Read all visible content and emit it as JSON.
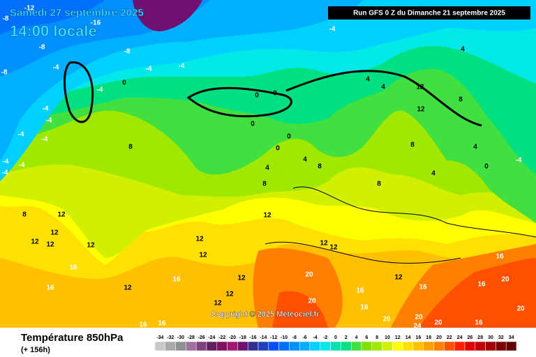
{
  "header": {
    "date": "Samedi 27 septembre 2025",
    "time": "14:00 locale",
    "run": "Run GFS 0 Z du Dimanche 21 septembre 2025"
  },
  "copyright": "Copyright © 2025 Meteociel.fr",
  "footer": {
    "variable": "Température 850hPa",
    "lead": "(+ 156h)"
  },
  "legend": {
    "values": [
      -34,
      -32,
      -30,
      -28,
      -26,
      -24,
      -22,
      -20,
      -18,
      -16,
      -14,
      -12,
      -10,
      -8,
      -6,
      -4,
      -2,
      0,
      2,
      4,
      6,
      8,
      10,
      12,
      14,
      16,
      18,
      20,
      22,
      24,
      26,
      28,
      30,
      32,
      34
    ],
    "colors": [
      "#c8c8c8",
      "#a8a8a8",
      "#909090",
      "#a070a0",
      "#804080",
      "#602060",
      "#801060",
      "#a01870",
      "#701070",
      "#303090",
      "#2040c0",
      "#0050ff",
      "#0070ff",
      "#0090ff",
      "#00b0ff",
      "#00d0ff",
      "#00e8e8",
      "#00e0b0",
      "#00e080",
      "#40e040",
      "#80e000",
      "#a0e800",
      "#d0f000",
      "#ffff00",
      "#ffe000",
      "#ffc000",
      "#ffa000",
      "#ff8000",
      "#ff5000",
      "#ff2000",
      "#e00000",
      "#c00000",
      "#a00000",
      "#800000",
      "#600000"
    ]
  },
  "map_labels": [
    "-12",
    "-16",
    "-8",
    "-8",
    "-8",
    "-4",
    "-4",
    "-4",
    "-4",
    "0",
    "-8",
    "-4",
    "-4",
    "-4",
    "-4",
    "-4",
    "-4",
    "-4",
    "-4",
    "4",
    "4",
    "4",
    "0",
    "0",
    "0",
    "8",
    "0",
    "0",
    "4",
    "4",
    "8",
    "8",
    "8",
    "12",
    "8",
    "12",
    "4",
    "0",
    "-4",
    "4",
    "8",
    "8",
    "12",
    "12",
    "12",
    "12",
    "12",
    "12",
    "12",
    "12",
    "12",
    "12",
    "16",
    "16",
    "16",
    "12",
    "12",
    "12",
    "12",
    "20",
    "16",
    "12",
    "16",
    "16",
    "20",
    "16",
    "20",
    "20",
    "20",
    "20",
    "24",
    "16",
    "16",
    "16",
    "20",
    "16"
  ]
}
